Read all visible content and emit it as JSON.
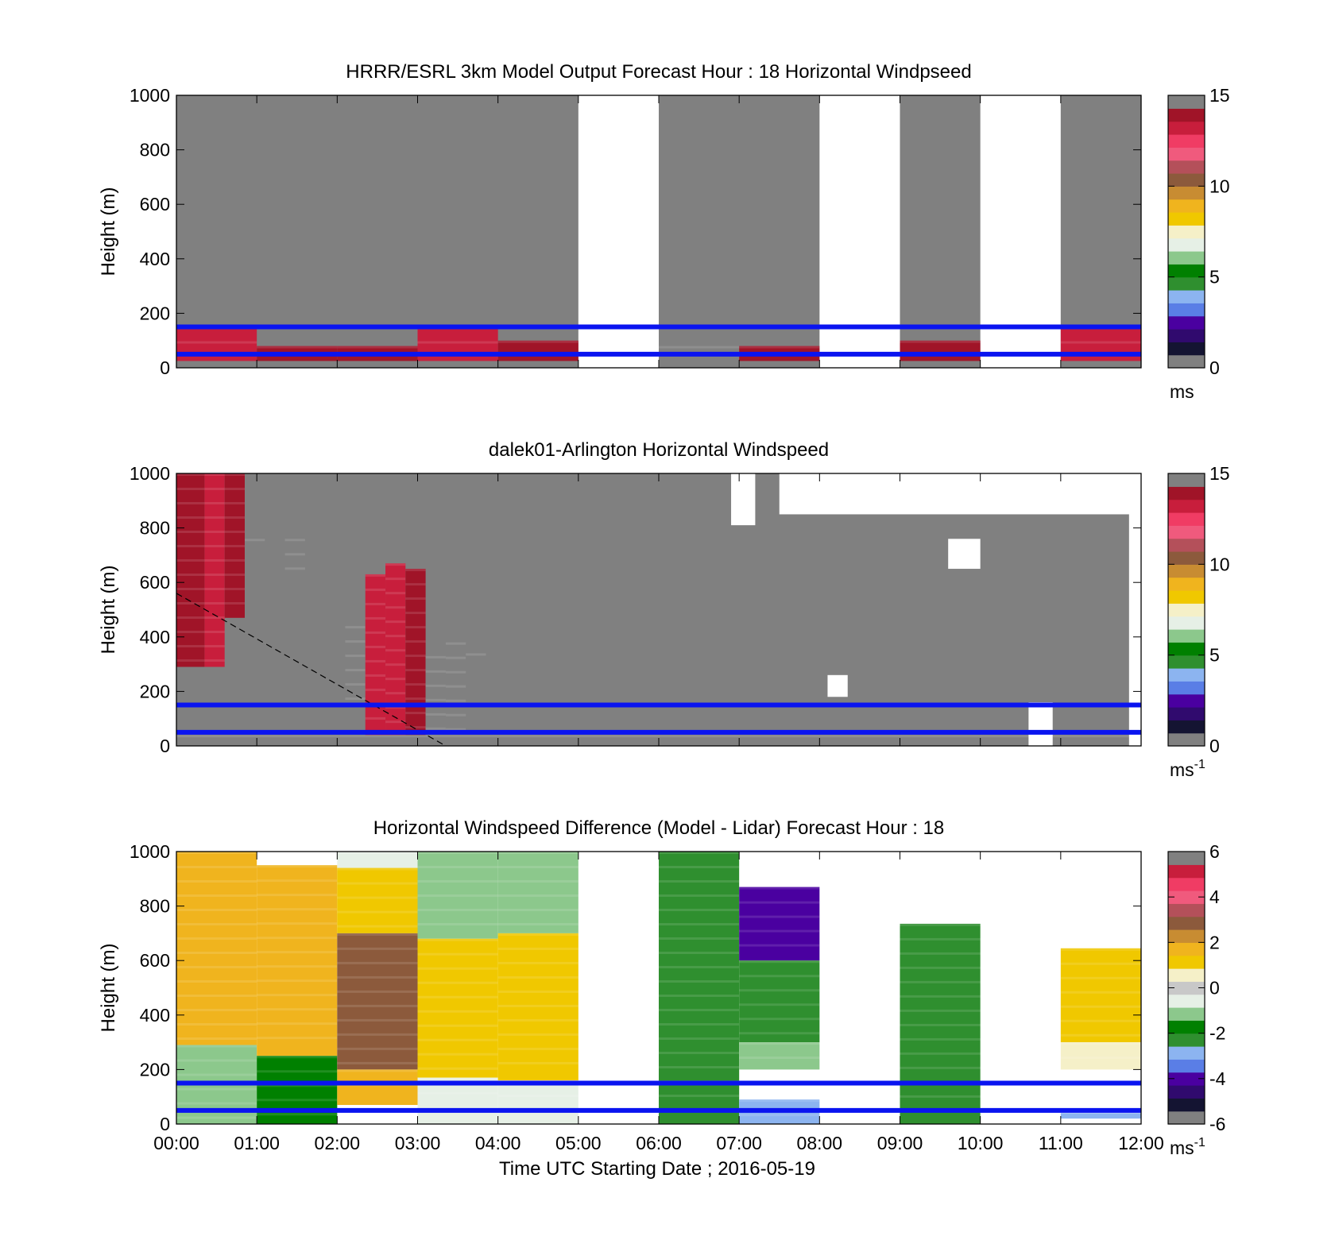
{
  "figure": {
    "xlabel": "Time UTC  Starting Date ; 2016-05-19",
    "xticks": [
      "00:00",
      "01:00",
      "02:00",
      "03:00",
      "04:00",
      "05:00",
      "06:00",
      "07:00",
      "08:00",
      "09:00",
      "10:00",
      "11:00",
      "12:00"
    ]
  },
  "colormaps": {
    "speed": [
      "#808080",
      "#141432",
      "#300a6e",
      "#4a00a0",
      "#5a7ee6",
      "#8cb4f0",
      "#2f8f2f",
      "#008000",
      "#8cc88c",
      "#e6f0e6",
      "#f5f0c8",
      "#f0c800",
      "#f0b41e",
      "#c88c32",
      "#8c5a3c",
      "#b4505a",
      "#f05a7d",
      "#f03c64",
      "#c81e3c",
      "#a01428",
      "#808080"
    ],
    "diff": [
      "#808080",
      "#141432",
      "#300a6e",
      "#4a00a0",
      "#5a7ee6",
      "#8cb4f0",
      "#2f8f2f",
      "#008000",
      "#8cc88c",
      "#e6f0e6",
      "#c8c8c8",
      "#f5f0c8",
      "#f0c800",
      "#f0b41e",
      "#c88c32",
      "#8c5a3c",
      "#b4505a",
      "#f05a7d",
      "#f03c64",
      "#c81e3c",
      "#808080"
    ]
  },
  "chart_data": [
    {
      "type": "heatmap",
      "title": "HRRR/ESRL 3km Model Output   Forecast Hour : 18 Horizontal Windpseed",
      "ylabel": "Height (m)",
      "ylim": [
        0,
        1000
      ],
      "yticks": [
        0,
        200,
        400,
        600,
        800,
        1000
      ],
      "xlim": [
        0,
        12
      ],
      "colorbar": {
        "ticks": [
          0,
          5,
          10,
          15
        ],
        "unit": "ms",
        "unit_sup": "",
        "range": [
          0,
          15
        ],
        "map": "speed"
      },
      "reference_lines_height_m": [
        50,
        150
      ],
      "cells": [
        {
          "t0": 0,
          "t1": 1,
          "z0": 25,
          "z1": 150,
          "v": 13.5
        },
        {
          "t0": 1,
          "t1": 2,
          "z0": 25,
          "z1": 80,
          "v": 14.0
        },
        {
          "t0": 2,
          "t1": 3,
          "z0": 25,
          "z1": 80,
          "v": 14.0
        },
        {
          "t0": 3,
          "t1": 4,
          "z0": 25,
          "z1": 150,
          "v": 13.5
        },
        {
          "t0": 4,
          "t1": 5,
          "z0": 25,
          "z1": 100,
          "v": 14.0
        },
        {
          "t0": 6,
          "t1": 7,
          "z0": 25,
          "z1": 80,
          "v": 14.5
        },
        {
          "t0": 7,
          "t1": 8,
          "z0": 25,
          "z1": 80,
          "v": 14.0
        },
        {
          "t0": 9,
          "t1": 10,
          "z0": 25,
          "z1": 100,
          "v": 14.0
        },
        {
          "t0": 11,
          "t1": 12,
          "z0": 25,
          "z1": 150,
          "v": 13.0
        }
      ],
      "missing": [
        [
          5,
          6
        ],
        [
          8,
          9
        ],
        [
          10,
          11
        ]
      ],
      "background_value": 16
    },
    {
      "type": "heatmap",
      "title": "dalek01-Arlington  Horizontal Windspeed",
      "ylabel": "Height (m)",
      "ylim": [
        0,
        1000
      ],
      "yticks": [
        0,
        200,
        400,
        600,
        800,
        1000
      ],
      "xlim": [
        0,
        12
      ],
      "colorbar": {
        "ticks": [
          0,
          5,
          10,
          15
        ],
        "unit": "ms",
        "unit_sup": "-1",
        "range": [
          0,
          15
        ],
        "map": "speed"
      },
      "reference_lines_height_m": [
        50,
        150
      ],
      "dashed_line": [
        [
          0,
          560
        ],
        [
          3.35,
          0
        ]
      ],
      "cells": [
        {
          "t0": 0,
          "t1": 0.35,
          "z0": 290,
          "z1": 1000,
          "v": 14.0
        },
        {
          "t0": 0.35,
          "t1": 0.6,
          "z0": 290,
          "z1": 1000,
          "v": 13.5
        },
        {
          "t0": 0.6,
          "t1": 0.85,
          "z0": 470,
          "z1": 1000,
          "v": 14.0
        },
        {
          "t0": 0.85,
          "t1": 1.1,
          "z0": 700,
          "z1": 760,
          "v": 14.5
        },
        {
          "t0": 1.35,
          "t1": 1.6,
          "z0": 600,
          "z1": 760,
          "v": 14.5
        },
        {
          "t0": 2.1,
          "t1": 2.35,
          "z0": 150,
          "z1": 440,
          "v": 14.5
        },
        {
          "t0": 2.35,
          "t1": 2.6,
          "z0": 20,
          "z1": 630,
          "v": 13.5
        },
        {
          "t0": 2.6,
          "t1": 2.85,
          "z0": 20,
          "z1": 670,
          "v": 13.0
        },
        {
          "t0": 2.85,
          "t1": 3.1,
          "z0": 20,
          "z1": 650,
          "v": 14.0
        },
        {
          "t0": 3.1,
          "t1": 3.35,
          "z0": 20,
          "z1": 330,
          "v": 14.5
        },
        {
          "t0": 3.35,
          "t1": 3.6,
          "z0": 20,
          "z1": 380,
          "v": 14.5
        },
        {
          "t0": 3.6,
          "t1": 3.85,
          "z0": 290,
          "z1": 340,
          "v": 14.5
        },
        {
          "t0": 0,
          "t1": 12,
          "z0": 0,
          "z1": 40,
          "v": 14.5
        }
      ],
      "missing_patches": [
        {
          "t0": 10.6,
          "t1": 10.9,
          "z0": 0,
          "z1": 160
        },
        {
          "t0": 11.85,
          "t1": 12,
          "z0": 0,
          "z1": 1000
        },
        {
          "t0": 7.5,
          "t1": 12,
          "z0": 850,
          "z1": 1000
        },
        {
          "t0": 6.9,
          "t1": 7.2,
          "z0": 810,
          "z1": 1000
        },
        {
          "t0": 9.6,
          "t1": 10.0,
          "z0": 650,
          "z1": 760
        },
        {
          "t0": 8.1,
          "t1": 8.35,
          "z0": 180,
          "z1": 260
        }
      ],
      "background_value": 16
    },
    {
      "type": "heatmap",
      "title": "Horizontal Windspeed Difference (Model - Lidar) Forecast Hour : 18",
      "ylabel": "Height (m)",
      "ylim": [
        0,
        1000
      ],
      "yticks": [
        0,
        200,
        400,
        600,
        800,
        1000
      ],
      "xlim": [
        0,
        12
      ],
      "colorbar": {
        "ticks": [
          -6,
          -4,
          -2,
          0,
          2,
          4,
          6
        ],
        "unit": "ms",
        "unit_sup": "-1",
        "range": [
          -6,
          6
        ],
        "map": "diff"
      },
      "reference_lines_height_m": [
        50,
        150
      ],
      "cells": [
        {
          "t0": 0,
          "t1": 1,
          "z0": 290,
          "z1": 1000,
          "v": 1.5
        },
        {
          "t0": 0,
          "t1": 1,
          "z0": 0,
          "z1": 290,
          "v": -1.0
        },
        {
          "t0": 1,
          "t1": 2,
          "z0": 250,
          "z1": 950,
          "v": 1.5
        },
        {
          "t0": 1,
          "t1": 2,
          "z0": 0,
          "z1": 250,
          "v": -1.5
        },
        {
          "t0": 2,
          "t1": 3,
          "z0": 940,
          "z1": 1000,
          "v": -0.8
        },
        {
          "t0": 2,
          "t1": 3,
          "z0": 700,
          "z1": 940,
          "v": 1.3
        },
        {
          "t0": 2,
          "t1": 3,
          "z0": 200,
          "z1": 700,
          "v": 3.0
        },
        {
          "t0": 2,
          "t1": 3,
          "z0": 70,
          "z1": 200,
          "v": 1.5
        },
        {
          "t0": 3,
          "t1": 4,
          "z0": 680,
          "z1": 1000,
          "v": -1.0
        },
        {
          "t0": 3,
          "t1": 4,
          "z0": 170,
          "z1": 680,
          "v": 1.0
        },
        {
          "t0": 3,
          "t1": 4,
          "z0": 0,
          "z1": 170,
          "v": -0.8
        },
        {
          "t0": 4,
          "t1": 5,
          "z0": 700,
          "z1": 1000,
          "v": -1.0
        },
        {
          "t0": 4,
          "t1": 5,
          "z0": 160,
          "z1": 700,
          "v": 1.2
        },
        {
          "t0": 4,
          "t1": 5,
          "z0": 0,
          "z1": 160,
          "v": -0.8
        },
        {
          "t0": 6,
          "t1": 7,
          "z0": 0,
          "z1": 1000,
          "v": -2.5
        },
        {
          "t0": 7,
          "t1": 8,
          "z0": 600,
          "z1": 870,
          "v": -4.0
        },
        {
          "t0": 7,
          "t1": 8,
          "z0": 300,
          "z1": 600,
          "v": -2.3
        },
        {
          "t0": 7,
          "t1": 8,
          "z0": 200,
          "z1": 300,
          "v": -1.2
        },
        {
          "t0": 7,
          "t1": 8,
          "z0": 0,
          "z1": 90,
          "v": -2.6
        },
        {
          "t0": 9,
          "t1": 10,
          "z0": 0,
          "z1": 735,
          "v": -2.5
        },
        {
          "t0": 11,
          "t1": 12,
          "z0": 300,
          "z1": 645,
          "v": 1.3
        },
        {
          "t0": 11,
          "t1": 12,
          "z0": 200,
          "z1": 300,
          "v": 0.4
        },
        {
          "t0": 11,
          "t1": 12,
          "z0": 20,
          "z1": 40,
          "v": -2.6
        }
      ],
      "background_value": null
    }
  ]
}
